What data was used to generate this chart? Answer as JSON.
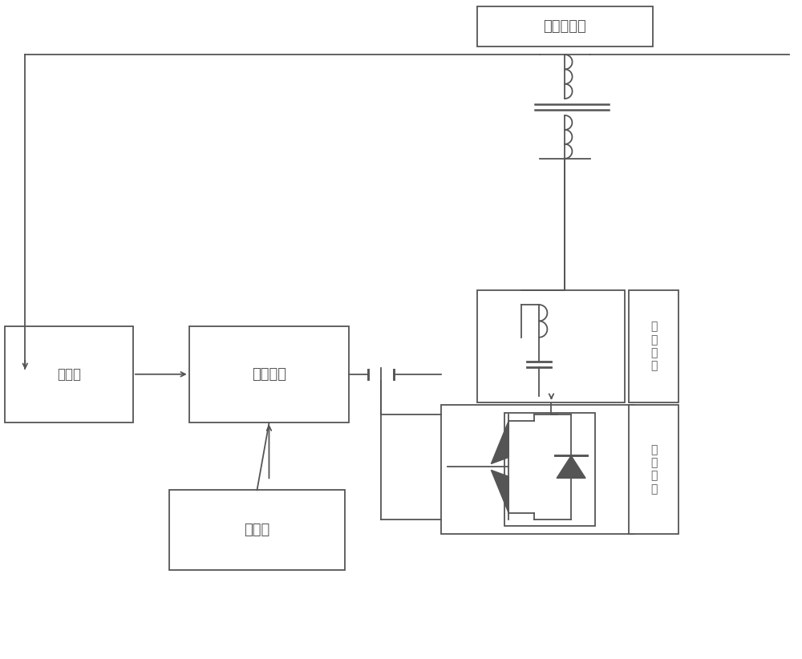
{
  "bg_color": "#ffffff",
  "line_color": "#555555",
  "box_color": "#555555",
  "text_color": "#333333",
  "figsize": [
    10.0,
    8.22
  ],
  "dpi": 100,
  "labels": {
    "transformer": "串联变压器",
    "filter": "滤\n波\n电\n路",
    "inverter": "逆\n变\n电\n路",
    "rectifier": "整流器",
    "storage": "能量储存",
    "controller": "控制器"
  }
}
